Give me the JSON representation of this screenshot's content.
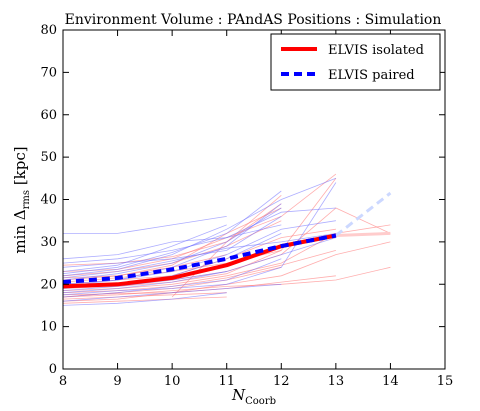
{
  "chart_data": {
    "type": "line",
    "title": "Environment    Volume : PAndAS    Positions : Simulation",
    "xlabel_main": "N",
    "xlabel_sub": "Coorb",
    "ylabel_main": "min Δ",
    "ylabel_sub": "rms",
    "ylabel_unit": " [kpc]",
    "xlim": [
      8,
      15
    ],
    "ylim": [
      0,
      80
    ],
    "xticks": [
      "8",
      "9",
      "10",
      "11",
      "12",
      "13",
      "14",
      "15"
    ],
    "yticks": [
      "0",
      "10",
      "20",
      "30",
      "40",
      "50",
      "60",
      "70",
      "80"
    ],
    "grid": false,
    "legend_position": "top-right",
    "series": [
      {
        "name": "ELVIS isolated",
        "style": "solid",
        "color": "#ff0000",
        "x": [
          8,
          9,
          10,
          11,
          12,
          13
        ],
        "y": [
          19.5,
          20.0,
          21.5,
          24.5,
          29.0,
          31.5
        ]
      },
      {
        "name": "ELVIS paired",
        "style": "dashed",
        "color": "#0000ff",
        "x": [
          8,
          9,
          10,
          11,
          12,
          13
        ],
        "y": [
          20.5,
          21.5,
          23.5,
          26.0,
          29.0,
          31.5
        ]
      }
    ],
    "extrapolation": [
      {
        "color": "#ffcccc",
        "x": [
          13,
          14
        ],
        "y": [
          31.5,
          32.0
        ]
      },
      {
        "color": "#ccd8ff",
        "x": [
          13,
          14
        ],
        "y": [
          31.5,
          41.5
        ]
      }
    ],
    "background_lines": [
      {
        "color": "#ff6b6b",
        "x": [
          8,
          9,
          10,
          11
        ],
        "y": [
          16.5,
          17.0,
          17.5,
          18.0
        ]
      },
      {
        "color": "#ff6b6b",
        "x": [
          8,
          9,
          10,
          11,
          12
        ],
        "y": [
          17.0,
          18.0,
          19.0,
          21.0,
          24.0
        ]
      },
      {
        "color": "#ff6b6b",
        "x": [
          8,
          9,
          10,
          11,
          12,
          13
        ],
        "y": [
          18.0,
          18.5,
          19.5,
          21.5,
          24.5,
          28.0
        ]
      },
      {
        "color": "#ff6b6b",
        "x": [
          8,
          9,
          10,
          11,
          12
        ],
        "y": [
          19.0,
          19.5,
          20.5,
          22.5,
          28.0
        ]
      },
      {
        "color": "#ff6b6b",
        "x": [
          8,
          9,
          10,
          11,
          12,
          13
        ],
        "y": [
          20.0,
          21.0,
          22.0,
          26.0,
          31.0,
          33.0
        ]
      },
      {
        "color": "#ff6b6b",
        "x": [
          8,
          9,
          10,
          11
        ],
        "y": [
          21.0,
          22.0,
          24.0,
          27.0
        ]
      },
      {
        "color": "#ff6b6b",
        "x": [
          8,
          9,
          10,
          11,
          12
        ],
        "y": [
          22.0,
          23.0,
          25.0,
          29.0,
          35.0
        ]
      },
      {
        "color": "#ff6b6b",
        "x": [
          8,
          9,
          10,
          11,
          12,
          13
        ],
        "y": [
          23.0,
          23.5,
          26.0,
          31.0,
          36.0,
          46.0
        ]
      },
      {
        "color": "#ff6b6b",
        "x": [
          8,
          9,
          10,
          11,
          12
        ],
        "y": [
          24.5,
          25.0,
          26.5,
          30.0,
          41.0
        ]
      },
      {
        "color": "#ff6b6b",
        "x": [
          8,
          9,
          10,
          11
        ],
        "y": [
          15.5,
          16.0,
          16.5,
          17.0
        ]
      },
      {
        "color": "#ff6b6b",
        "x": [
          8,
          9,
          10,
          11,
          12,
          13
        ],
        "y": [
          17.5,
          17.8,
          18.0,
          19.0,
          20.5,
          22.0
        ]
      },
      {
        "color": "#ff6b6b",
        "x": [
          8,
          9,
          10,
          11,
          12,
          13,
          14
        ],
        "y": [
          18.5,
          19.0,
          20.0,
          22.0,
          25.0,
          32.0,
          34.0
        ]
      },
      {
        "color": "#ff6b6b",
        "x": [
          8,
          9,
          10,
          11,
          12,
          13,
          14
        ],
        "y": [
          16.0,
          16.5,
          18.0,
          20.0,
          22.0,
          27.0,
          30.0
        ]
      },
      {
        "color": "#ff6b6b",
        "x": [
          8,
          9,
          10,
          11,
          12,
          13,
          14
        ],
        "y": [
          17.0,
          17.5,
          18.5,
          19.5,
          20.0,
          21.0,
          24.0
        ]
      },
      {
        "color": "#ff6b6b",
        "x": [
          8,
          9,
          10,
          11,
          12,
          13
        ],
        "y": [
          20.5,
          21.5,
          23.0,
          25.0,
          28.0,
          45.0
        ]
      },
      {
        "color": "#ff6b6b",
        "x": [
          8,
          9,
          10,
          11,
          12,
          13,
          14
        ],
        "y": [
          19.5,
          20.0,
          21.0,
          23.0,
          27.0,
          38.0,
          32.0
        ]
      },
      {
        "color": "#ff6b6b",
        "x": [
          8,
          9,
          10,
          11,
          12
        ],
        "y": [
          21.5,
          22.0,
          24.5,
          32.0,
          38.0
        ]
      },
      {
        "color": "#ff6b6b",
        "x": [
          10,
          11,
          12
        ],
        "y": [
          17.0,
          30.0,
          39.0
        ]
      },
      {
        "color": "#6b6bff",
        "x": [
          8,
          9,
          10,
          11
        ],
        "y": [
          32.0,
          32.0,
          34.0,
          36.0
        ]
      },
      {
        "color": "#6b6bff",
        "x": [
          8,
          9,
          10,
          11,
          12
        ],
        "y": [
          16.0,
          17.0,
          18.0,
          19.0,
          20.0
        ]
      },
      {
        "color": "#6b6bff",
        "x": [
          8,
          9,
          10,
          11,
          12
        ],
        "y": [
          17.0,
          18.0,
          19.5,
          21.0,
          26.0
        ]
      },
      {
        "color": "#6b6bff",
        "x": [
          8,
          9,
          10,
          11,
          12,
          13
        ],
        "y": [
          18.0,
          19.0,
          20.5,
          23.0,
          27.0,
          31.0
        ]
      },
      {
        "color": "#6b6bff",
        "x": [
          8,
          9,
          10,
          11,
          12
        ],
        "y": [
          19.0,
          20.0,
          22.0,
          26.0,
          32.0
        ]
      },
      {
        "color": "#6b6bff",
        "x": [
          8,
          9,
          10,
          11,
          12,
          13
        ],
        "y": [
          20.0,
          21.0,
          23.0,
          27.0,
          33.0,
          35.0
        ]
      },
      {
        "color": "#6b6bff",
        "x": [
          8,
          9,
          10,
          11,
          12
        ],
        "y": [
          21.0,
          22.5,
          25.0,
          30.0,
          38.0
        ]
      },
      {
        "color": "#6b6bff",
        "x": [
          8,
          9,
          10,
          11,
          12,
          13
        ],
        "y": [
          22.0,
          23.5,
          27.0,
          33.0,
          40.0,
          45.0
        ]
      },
      {
        "color": "#6b6bff",
        "x": [
          8,
          9,
          10,
          11
        ],
        "y": [
          23.0,
          24.5,
          29.0,
          34.0
        ]
      },
      {
        "color": "#6b6bff",
        "x": [
          8,
          9,
          10,
          11,
          12
        ],
        "y": [
          24.0,
          25.0,
          26.0,
          28.0,
          36.0
        ]
      },
      {
        "color": "#6b6bff",
        "x": [
          8,
          9,
          10,
          11,
          12,
          13
        ],
        "y": [
          25.0,
          26.0,
          28.0,
          31.0,
          37.0,
          38.0
        ]
      },
      {
        "color": "#6b6bff",
        "x": [
          8,
          9,
          10,
          11
        ],
        "y": [
          15.0,
          15.5,
          16.5,
          18.0
        ]
      },
      {
        "color": "#6b6bff",
        "x": [
          8,
          9,
          10,
          11,
          12
        ],
        "y": [
          26.0,
          27.0,
          30.0,
          31.0,
          34.0
        ]
      },
      {
        "color": "#6b6bff",
        "x": [
          8,
          9,
          10,
          11,
          12
        ],
        "y": [
          19.5,
          21.0,
          24.0,
          29.0,
          39.0
        ]
      },
      {
        "color": "#6b6bff",
        "x": [
          8,
          9,
          10,
          11,
          12
        ],
        "y": [
          22.5,
          24.0,
          27.5,
          32.0,
          42.0
        ]
      },
      {
        "color": "#6b6bff",
        "x": [
          8,
          9,
          10,
          11
        ],
        "y": [
          18.5,
          19.5,
          21.0,
          23.0
        ]
      },
      {
        "color": "#6b6bff",
        "x": [
          8,
          9,
          10,
          11,
          12,
          13
        ],
        "y": [
          17.5,
          18.5,
          19.0,
          20.0,
          24.0,
          44.0
        ]
      },
      {
        "color": "#6b6bff",
        "x": [
          8,
          9,
          10,
          11,
          12,
          13
        ],
        "y": [
          21.5,
          23.0,
          25.5,
          28.5,
          30.0,
          32.0
        ]
      }
    ]
  }
}
